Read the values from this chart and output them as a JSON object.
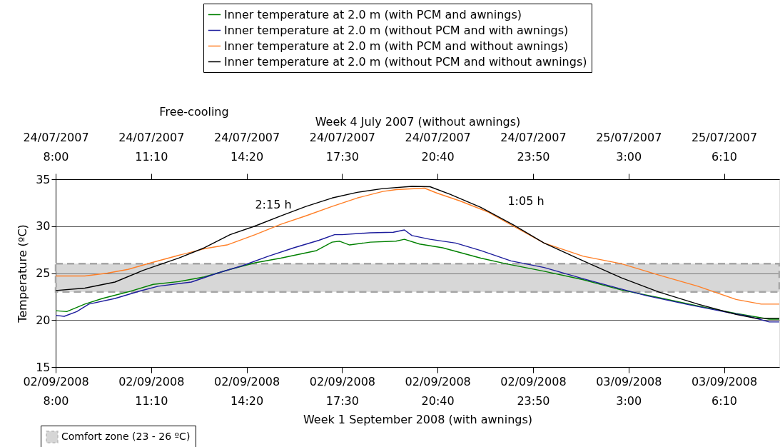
{
  "chart_data": {
    "type": "line",
    "xlabel": "Week 1 September 2008 (with awnings)",
    "x2label": "Week 4 July 2007 (without awnings)",
    "ylabel": "Temperature (ºC)",
    "xlim": [
      "2008-09-02T08:00",
      "2008-09-03T08:00"
    ],
    "xticks": [
      {
        "value": "2008-09-02T08:00",
        "label": "02/09/2008 8:00"
      },
      {
        "value": "2008-09-02T11:10",
        "label": "02/09/2008 11:10"
      },
      {
        "value": "2008-09-02T14:20",
        "label": "02/09/2008 14:20"
      },
      {
        "value": "2008-09-02T17:30",
        "label": "02/09/2008 17:30"
      },
      {
        "value": "2008-09-02T20:40",
        "label": "02/09/2008 20:40"
      },
      {
        "value": "2008-09-02T23:50",
        "label": "02/09/2008 23:50"
      },
      {
        "value": "2008-09-03T03:00",
        "label": "03/09/2008 3:00"
      },
      {
        "value": "2008-09-03T06:10",
        "label": "03/09/2008 6:10"
      }
    ],
    "x2lim": [
      "2007-07-24T08:00",
      "2007-07-25T08:00"
    ],
    "x2ticks": [
      {
        "value": "2007-07-24T08:00",
        "label": "24/07/2007 8:00"
      },
      {
        "value": "2007-07-24T11:10",
        "label": "24/07/2007 11:10"
      },
      {
        "value": "2007-07-24T14:20",
        "label": "24/07/2007 14:20"
      },
      {
        "value": "2007-07-24T17:30",
        "label": "24/07/2007 17:30"
      },
      {
        "value": "2007-07-24T20:40",
        "label": "24/07/2007 20:40"
      },
      {
        "value": "2007-07-24T23:50",
        "label": "24/07/2007 23:50"
      },
      {
        "value": "2007-07-25T03:00",
        "label": "25/07/2007 3:00"
      },
      {
        "value": "2007-07-25T06:10",
        "label": "25/07/2007 6:10"
      }
    ],
    "ylim": [
      15,
      35
    ],
    "yticks": [
      15,
      20,
      25,
      30,
      35
    ],
    "grid": "y",
    "legend": "top",
    "series": [
      {
        "name": "Inner temperature at 2.0 m (with PCM and awnings)",
        "color": "#008000",
        "x": [
          "2008-09-02T08:00",
          "2008-09-02T08:22",
          "2008-09-02T08:58",
          "2008-09-02T09:33",
          "2008-09-02T10:24",
          "2008-09-02T11:14",
          "2008-09-02T12:05",
          "2008-09-02T12:56",
          "2008-09-02T13:47",
          "2008-09-02T14:37",
          "2008-09-02T15:28",
          "2008-09-02T16:39",
          "2008-09-02T17:10",
          "2008-09-02T17:25",
          "2008-09-02T17:45",
          "2008-09-02T18:26",
          "2008-09-02T19:17",
          "2008-09-02T19:34",
          "2008-09-02T20:04",
          "2008-09-02T20:50",
          "2008-09-02T22:06",
          "2008-09-02T22:56",
          "2008-09-03T00:12",
          "2008-09-03T01:30",
          "2008-09-03T02:46",
          "2008-09-03T04:00",
          "2008-09-03T05:18",
          "2008-09-03T06:34",
          "2008-09-03T07:40",
          "2008-09-03T08:00"
        ],
        "values": [
          21.0,
          20.9,
          21.7,
          22.3,
          23.0,
          23.8,
          24.1,
          24.6,
          25.4,
          26.1,
          26.6,
          27.4,
          28.3,
          28.4,
          28.0,
          28.3,
          28.4,
          28.6,
          28.1,
          27.7,
          26.6,
          26.0,
          25.2,
          24.3,
          23.2,
          22.4,
          21.5,
          20.7,
          20.1,
          20.1
        ]
      },
      {
        "name": "Inner temperature at 2.0 m (without PCM and with awnings)",
        "color": "#1c1c9c",
        "x": [
          "2008-09-02T08:00",
          "2008-09-02T08:17",
          "2008-09-02T08:42",
          "2008-09-02T09:06",
          "2008-09-02T09:58",
          "2008-09-02T10:48",
          "2008-09-02T11:24",
          "2008-09-02T12:30",
          "2008-09-02T13:22",
          "2008-09-02T14:12",
          "2008-09-02T15:03",
          "2008-09-02T15:54",
          "2008-09-02T16:44",
          "2008-09-02T17:15",
          "2008-09-02T17:30",
          "2008-09-02T18:26",
          "2008-09-02T19:12",
          "2008-09-02T19:34",
          "2008-09-02T19:49",
          "2008-09-02T20:25",
          "2008-09-02T21:16",
          "2008-09-02T22:06",
          "2008-09-02T23:06",
          "2008-09-03T00:12",
          "2008-09-03T01:30",
          "2008-09-03T02:46",
          "2008-09-03T03:36",
          "2008-09-03T04:54",
          "2008-09-03T06:09",
          "2008-09-03T06:59",
          "2008-09-03T07:40",
          "2008-09-03T08:00"
        ],
        "values": [
          20.5,
          20.4,
          20.9,
          21.7,
          22.3,
          23.1,
          23.6,
          24.05,
          25.0,
          25.8,
          26.8,
          27.7,
          28.5,
          29.1,
          29.1,
          29.3,
          29.35,
          29.6,
          29.0,
          28.6,
          28.2,
          27.4,
          26.3,
          25.6,
          24.4,
          23.3,
          22.6,
          21.7,
          20.9,
          20.4,
          19.8,
          19.8
        ]
      },
      {
        "name": "Inner temperature at 2.0 m (with PCM and without awnings)",
        "color": "#ff7f27",
        "axis": "x2",
        "x": [
          "2007-07-24T08:00",
          "2007-07-24T08:58",
          "2007-07-24T09:43",
          "2007-07-24T10:24",
          "2007-07-24T11:10",
          "2007-07-24T12:05",
          "2007-07-24T12:56",
          "2007-07-24T13:41",
          "2007-07-24T14:37",
          "2007-07-24T15:28",
          "2007-07-24T16:18",
          "2007-07-24T17:10",
          "2007-07-24T18:00",
          "2007-07-24T18:51",
          "2007-07-24T19:18",
          "2007-07-24T20:14",
          "2007-07-24T20:40",
          "2007-07-24T21:24",
          "2007-07-24T22:21",
          "2007-07-24T23:18",
          "2007-07-25T00:12",
          "2007-07-25T01:30",
          "2007-07-25T02:46",
          "2007-07-25T04:00",
          "2007-07-25T05:18",
          "2007-07-25T06:34",
          "2007-07-25T07:24",
          "2007-07-25T08:00"
        ],
        "values": [
          24.7,
          24.7,
          25.0,
          25.4,
          26.1,
          26.9,
          27.6,
          28.0,
          29.1,
          30.2,
          31.1,
          32.1,
          33.0,
          33.7,
          33.9,
          34.05,
          33.5,
          32.7,
          31.5,
          29.8,
          28.2,
          26.8,
          26.0,
          24.8,
          23.6,
          22.2,
          21.7,
          21.7
        ]
      },
      {
        "name": "Inner temperature at 2.0 m (without PCM and without awnings)",
        "color": "#000000",
        "axis": "x2",
        "x": [
          "2007-07-24T08:00",
          "2007-07-24T08:58",
          "2007-07-24T09:58",
          "2007-07-24T10:54",
          "2007-07-24T12:05",
          "2007-07-24T12:56",
          "2007-07-24T13:47",
          "2007-07-24T14:36",
          "2007-07-24T15:28",
          "2007-07-24T16:18",
          "2007-07-24T17:10",
          "2007-07-24T18:00",
          "2007-07-24T18:51",
          "2007-07-24T19:49",
          "2007-07-24T20:25",
          "2007-07-24T21:05",
          "2007-07-24T22:06",
          "2007-07-24T23:12",
          "2007-07-25T00:12",
          "2007-07-25T01:30",
          "2007-07-25T02:46",
          "2007-07-25T04:00",
          "2007-07-25T05:18",
          "2007-07-25T06:34",
          "2007-07-25T07:12",
          "2007-07-25T08:00"
        ],
        "values": [
          23.15,
          23.4,
          24.05,
          25.3,
          26.6,
          27.7,
          29.1,
          30.0,
          31.1,
          32.1,
          33.0,
          33.6,
          34.0,
          34.24,
          34.2,
          33.4,
          32.0,
          30.1,
          28.2,
          26.3,
          24.5,
          23.0,
          21.7,
          20.6,
          20.2,
          20.2
        ]
      }
    ],
    "bands": [
      {
        "axis": "y",
        "from": 23,
        "to": 26,
        "label": "Comfort zone (23 - 26 ºC)",
        "color": "#a6a6a6"
      }
    ],
    "annotations": [
      "Free-cooling",
      "2:15 h",
      "1:05 h"
    ]
  }
}
